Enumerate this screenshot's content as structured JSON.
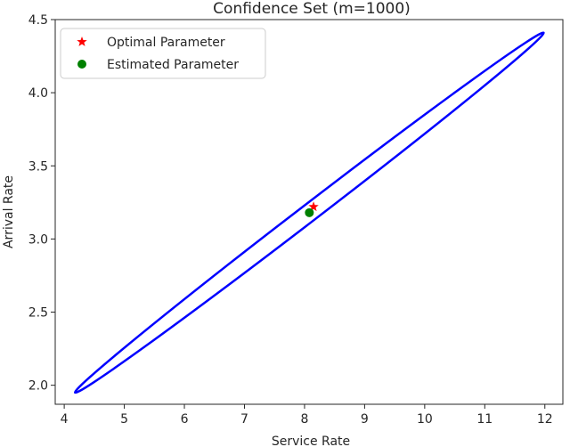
{
  "chart_data": {
    "type": "scatter",
    "title": "Confidence Set (m=1000)",
    "xlabel": "Service Rate",
    "ylabel": "Arrival Rate",
    "xlim": [
      3.85,
      12.3
    ],
    "ylim": [
      1.87,
      4.5
    ],
    "xticks": [
      "4",
      "5",
      "6",
      "7",
      "8",
      "9",
      "10",
      "11",
      "12"
    ],
    "yticks": [
      "2.0",
      "2.5",
      "3.0",
      "3.5",
      "4.0",
      "4.5"
    ],
    "grid": false,
    "legend_position": "top-left",
    "ellipse": {
      "name": "Confidence Set",
      "color": "#0000ff",
      "center": [
        8.08,
        3.18
      ],
      "end_lower_left": [
        4.18,
        1.95
      ],
      "end_upper_right": [
        11.98,
        4.41
      ],
      "half_width_y": 0.075
    },
    "series": [
      {
        "name": "Optimal Parameter",
        "marker": "star",
        "color": "#ff0000",
        "x": 8.15,
        "y": 3.22
      },
      {
        "name": "Estimated Parameter",
        "marker": "circle",
        "color": "#008000",
        "x": 8.08,
        "y": 3.18
      }
    ]
  }
}
